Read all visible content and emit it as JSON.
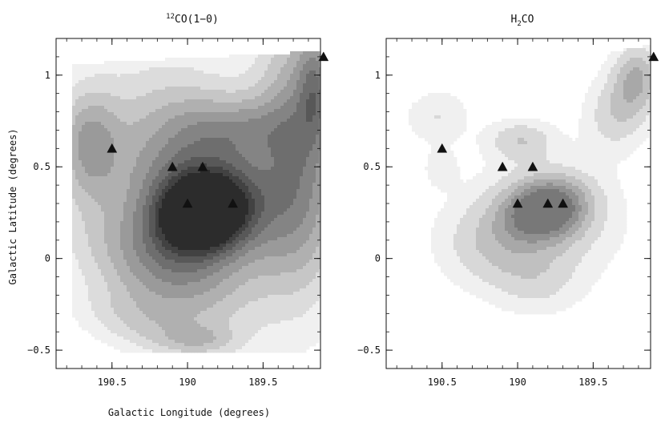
{
  "figure": {
    "xlabel": "Galactic Longitude (degrees)",
    "ylabel": "Galactic Latitude (degrees)"
  },
  "chart_data": [
    {
      "type": "heatmap",
      "title": "12CO(1−0)",
      "title_sup": "12",
      "title_main": "CO(1−0)",
      "xlabel": "Galactic Longitude (degrees)",
      "ylabel": "Galactic Latitude (degrees)",
      "xlim": [
        190.87,
        189.12
      ],
      "ylim": [
        -0.6,
        1.2
      ],
      "xticks": [
        190.5,
        190.0,
        189.5
      ],
      "xtick_labels": [
        "190.5",
        "190",
        "189.5"
      ],
      "yticks": [
        1.0,
        0.5,
        0.0,
        -0.5
      ],
      "ytick_labels": [
        "1",
        "0.5",
        "0",
        "−0.5"
      ],
      "colors": [
        "#f0f0f0",
        "#dcdcdc",
        "#c6c6c6",
        "#b0b0b0",
        "#9a9a9a",
        "#848484",
        "#6e6e6e",
        "#585858",
        "#424242",
        "#2c2c2c"
      ],
      "sources": [
        {
          "x": 190.5,
          "y": 0.6
        },
        {
          "x": 190.1,
          "y": 0.5
        },
        {
          "x": 189.9,
          "y": 0.5
        },
        {
          "x": 190.0,
          "y": 0.3
        },
        {
          "x": 189.7,
          "y": 0.3
        },
        {
          "x": 189.1,
          "y": 1.1
        }
      ]
    },
    {
      "type": "heatmap",
      "title": "H2CO",
      "title_main": "H",
      "title_sub": "2",
      "title_tail": "CO",
      "xlim": [
        190.87,
        189.12
      ],
      "ylim": [
        -0.6,
        1.2
      ],
      "xticks": [
        190.5,
        190.0,
        189.5
      ],
      "xtick_labels": [
        "190.5",
        "190",
        "189.5"
      ],
      "yticks": [
        1.0,
        0.5,
        0.0,
        -0.5
      ],
      "ytick_labels": [
        "1",
        "0.5",
        "0",
        "−0.5"
      ],
      "colors": [
        "#f0f0f0",
        "#d8d8d8",
        "#c0c0c0",
        "#a8a8a8",
        "#909090",
        "#787878"
      ],
      "sources": [
        {
          "x": 190.5,
          "y": 0.6
        },
        {
          "x": 190.1,
          "y": 0.5
        },
        {
          "x": 189.9,
          "y": 0.5
        },
        {
          "x": 190.0,
          "y": 0.3
        },
        {
          "x": 189.8,
          "y": 0.3
        },
        {
          "x": 189.7,
          "y": 0.3
        },
        {
          "x": 189.1,
          "y": 1.1
        }
      ]
    }
  ]
}
